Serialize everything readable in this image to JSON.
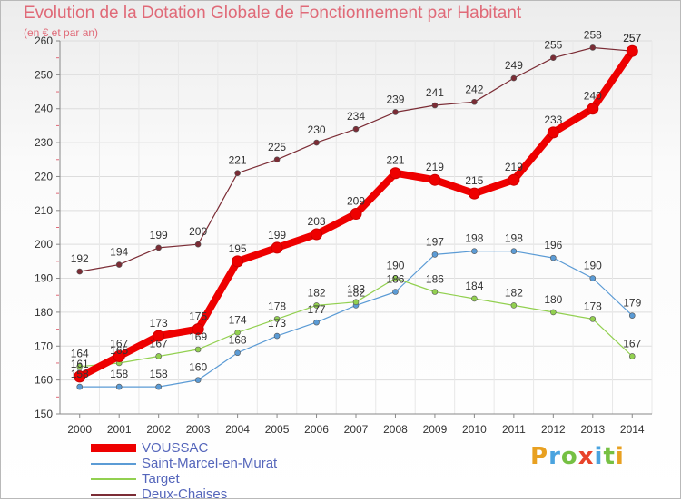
{
  "title": "Evolution de la Dotation Globale de Fonctionnement par Habitant",
  "subtitle": "(en € et par an)",
  "logo": {
    "letters": [
      "P",
      "r",
      "o",
      "x",
      "i",
      "t",
      "i"
    ],
    "colors": [
      "#e8a020",
      "#4aa3df",
      "#76c043",
      "#e8432a",
      "#4aa3df",
      "#76c043",
      "#e8a020"
    ]
  },
  "chart_data": {
    "type": "line",
    "title": "Evolution de la Dotation Globale de Fonctionnement par Habitant",
    "subtitle": "(en € et par an)",
    "xlabel": "",
    "ylabel": "",
    "ylim": [
      150,
      260
    ],
    "yticks": [
      150,
      160,
      170,
      180,
      190,
      200,
      210,
      220,
      230,
      240,
      250,
      260
    ],
    "grid": true,
    "legend_position": "bottom-left",
    "categories": [
      "2000",
      "2001",
      "2002",
      "2003",
      "2004",
      "2005",
      "2006",
      "2007",
      "2008",
      "2009",
      "2010",
      "2011",
      "2012",
      "2013",
      "2014"
    ],
    "series": [
      {
        "name": "VOUSSAC",
        "color": "#ee0000",
        "values": [
          161,
          167,
          173,
          175,
          195,
          199,
          203,
          209,
          221,
          219,
          215,
          219,
          233,
          240,
          257
        ],
        "labels": [
          "161",
          "167",
          "173",
          "175",
          "195",
          "199",
          "203",
          "209",
          "221",
          "219",
          "215",
          "219",
          "233",
          "240",
          "257"
        ]
      },
      {
        "name": "Saint-Marcel-en-Murat",
        "color": "#5b9bd5",
        "values": [
          158,
          158,
          158,
          160,
          168,
          173,
          177,
          182,
          186,
          197,
          198,
          198,
          196,
          190,
          179
        ],
        "labels": [
          "158",
          "158",
          "158",
          "160",
          "168",
          "173",
          "177",
          "182",
          "186",
          "197",
          "198",
          "198",
          "196",
          "190",
          "179"
        ]
      },
      {
        "name": "Target",
        "color": "#92d050",
        "values": [
          164,
          165,
          167,
          169,
          174,
          178,
          182,
          183,
          190,
          186,
          184,
          182,
          180,
          178,
          167
        ],
        "labels": [
          "164",
          "165",
          "167",
          "169",
          "174",
          "178",
          "182",
          "183",
          "190",
          "186",
          "184",
          "182",
          "180",
          "178",
          "167"
        ]
      },
      {
        "name": "Deux-Chaises",
        "color": "#7b2c35",
        "values": [
          192,
          194,
          199,
          200,
          221,
          225,
          230,
          234,
          239,
          241,
          242,
          249,
          255,
          258,
          257
        ],
        "labels": [
          "192",
          "194",
          "199",
          "200",
          "221",
          "225",
          "230",
          "234",
          "239",
          "241",
          "242",
          "249",
          "255",
          "258",
          "257"
        ]
      }
    ]
  }
}
